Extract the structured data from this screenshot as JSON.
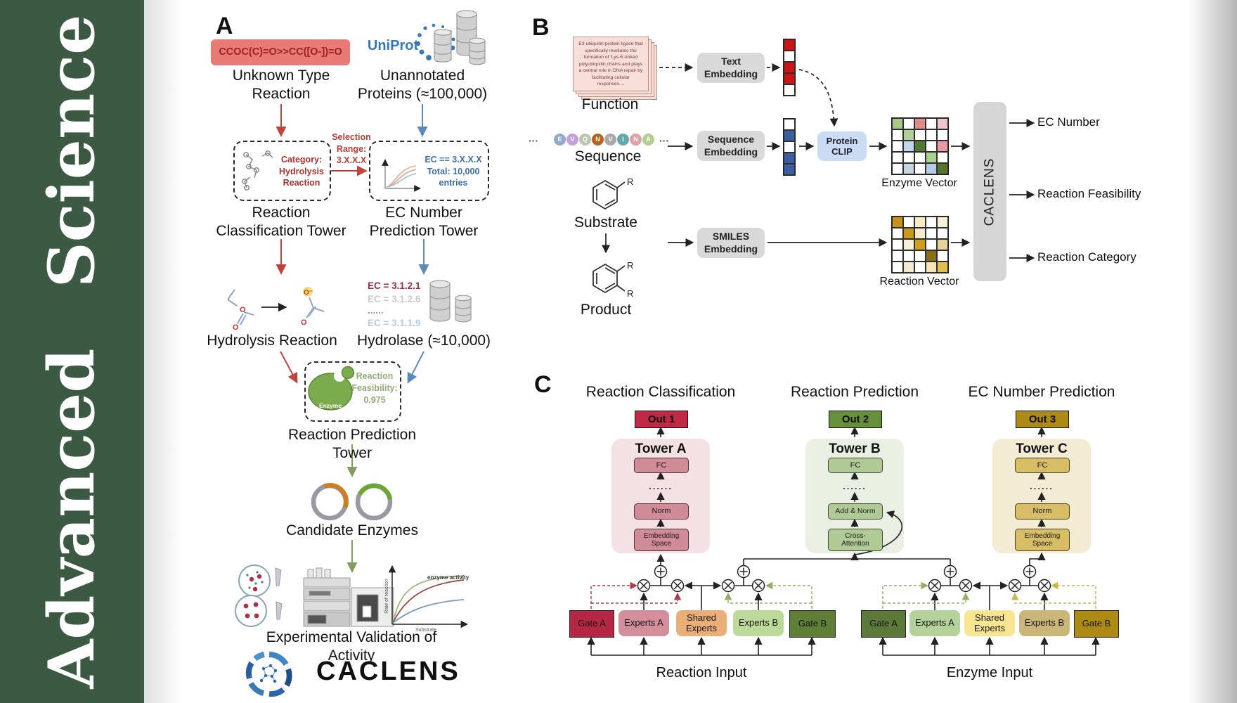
{
  "sidebar": {
    "title": "Advanced  Science"
  },
  "panel_a": {
    "label": "A",
    "smiles": "CCOC(C)=O>>CC([O-])=O",
    "caption_unknown": "Unknown Type\nReaction",
    "uniprot": "UniProt",
    "caption_unannotated": "Unannotated\nProteins (≈100,000)",
    "selection": "Selection\nRange:\n3.X.X.X",
    "category": "Category:\nHydrolysis\nReaction",
    "ec_box": "EC == 3.X.X.X\nTotal: 10,000\nentries",
    "tower_classification": "Reaction\nClassification Tower",
    "tower_ec": "EC Number\nPrediction Tower",
    "hydrolysis": "Hydrolysis Reaction",
    "ec_list": [
      "EC = 3.1.2.1",
      "EC = 3.1.2.6",
      "......",
      "EC = 3.1.1.9"
    ],
    "hydrolase": "Hydrolase (≈10,000)",
    "enzyme": "Enzyme",
    "feasibility": "Reaction\nFeasibility:\n0.975",
    "tower_prediction": "Reaction Prediction Tower",
    "candidates": "Candidate Enzymes",
    "validation": "Experimental Validation of Activity",
    "logo": "CACLENS",
    "atom_o": "O",
    "atom_o_minus": "O⁻",
    "graph": {
      "ylabel": "Rate of reaction",
      "xlabel": "Substrate",
      "annotation": "enzyme activity"
    }
  },
  "panel_b": {
    "label": "B",
    "function_card": "E3 ubiquitin-protein ligase that specifically mediates the formation of 'Lys-6'-linked polyubiquitin chains and plays a central role in DNA repair by facilitating cellular responses....",
    "function_label": "Function",
    "ellipsis": "···",
    "sequence": [
      {
        "letter": "E",
        "color": "#92a9cf"
      },
      {
        "letter": "V",
        "color": "#c59fdb"
      },
      {
        "letter": "Q",
        "color": "#b8c7b2"
      },
      {
        "letter": "N",
        "color": "#b5641f"
      },
      {
        "letter": "V",
        "color": "#a9a9ab"
      },
      {
        "letter": "I",
        "color": "#5fa8ad"
      },
      {
        "letter": "N",
        "color": "#e3a0a5"
      },
      {
        "letter": "A",
        "color": "#b2cf8e"
      }
    ],
    "sequence_label": "Sequence",
    "substrate_label": "Substrate",
    "product_label": "Product",
    "r_label": "R",
    "text_embedding": "Text\nEmbedding",
    "sequence_embedding": "Sequence\nEmbedding",
    "smiles_embedding": "SMILES\nEmbedding",
    "protein_clip": "Protein\nCLIP",
    "text_vector_cells": [
      "#cc1515",
      "#ffffff",
      "#cc1515",
      "#cc1515",
      "#ffffff"
    ],
    "sequence_vector_cells": [
      "#ffffff",
      "#3b5fa0",
      "#ffffff",
      "#3b5fa0",
      "#3b5fa0"
    ],
    "enzyme_matrix_cells": [
      "#a9c98a",
      "#ffffff",
      "#e08a8a",
      "#ffffff",
      "#f2c4cc",
      "#ffffff",
      "#b5d19a",
      "#ffffff",
      "#ffffff",
      "#ffffff",
      "#ffffff",
      "#c3d5ea",
      "#4e7a32",
      "#ffffff",
      "#e89ba4",
      "#ffffff",
      "#ffffff",
      "#ffffff",
      "#a9d18e",
      "#ffffff",
      "#ffffff",
      "#c8d3e0",
      "#ffffff",
      "#b5cce8",
      "#55742e"
    ],
    "reaction_matrix_cells": [
      "#c8921a",
      "#ffffff",
      "#f7ecc8",
      "#ffffff",
      "#f9f0d8",
      "#ffffff",
      "#c8981f",
      "#f5ecd0",
      "#ffffff",
      "#ffffff",
      "#ffffff",
      "#f7f0d8",
      "#cf9e1f",
      "#ffffff",
      "#e8d49a",
      "#ffffff",
      "#ffffff",
      "#ffffff",
      "#8a6d14",
      "#ffffff",
      "#ffffff",
      "#f5ecd0",
      "#ffffff",
      "#f5e6b8",
      "#e3c04a"
    ],
    "enzyme_vector_label": "Enzyme Vector",
    "reaction_vector_label": "Reaction Vector",
    "caclens": "CACLENS",
    "outputs": [
      "EC Number",
      "Reaction Feasibility",
      "Reaction Category"
    ]
  },
  "panel_c": {
    "label": "C",
    "columns": [
      {
        "title": "Reaction Classification",
        "out": "Out 1",
        "tower": "Tower A",
        "blocks": [
          "FC",
          "......",
          "Norm",
          "Embedding\nSpace"
        ]
      },
      {
        "title": "Reaction Prediction",
        "out": "Out 2",
        "tower": "Tower B",
        "blocks": [
          "FC",
          "......",
          "Add & Norm",
          "Cross-\nAttention"
        ]
      },
      {
        "title": "EC Number Prediction",
        "out": "Out 3",
        "tower": "Tower C",
        "blocks": [
          "FC",
          "......",
          "Norm",
          "Embedding\nSpace"
        ]
      }
    ],
    "groups": [
      {
        "gate_a": "Gate A",
        "experts_a": "Experts A",
        "shared": "Shared\nExperts",
        "experts_b": "Experts B",
        "gate_b": "Gate B",
        "input": "Reaction Input"
      },
      {
        "gate_a": "Gate A",
        "experts_a": "Experts A",
        "shared": "Shared\nExperts",
        "experts_b": "Experts B",
        "gate_b": "Gate B",
        "input": "Enzyme Input"
      }
    ]
  },
  "palette": {
    "sidebar_green": "#3c5a43",
    "uniprot_blue": "#3779b5",
    "arrow_red": "#c0443c",
    "arrow_blue": "#5b8ab8",
    "arrow_green": "#7f9e60",
    "out1": "#c02845",
    "out2": "#67903d",
    "out3": "#ad8a15",
    "gate_a_reaction": "#b52742",
    "experts_a_reaction": "#d28f9b",
    "shared_experts_reaction": "#eaaf76",
    "experts_b_reaction": "#bcd99a",
    "gate_b_reaction": "#5f7f37",
    "gate_a_enzyme": "#5c7b3a",
    "experts_a_enzyme": "#b5d29a",
    "shared_experts_enzyme": "#f7e591",
    "experts_b_enzyme": "#cab679",
    "gate_b_enzyme": "#ac8a14"
  }
}
